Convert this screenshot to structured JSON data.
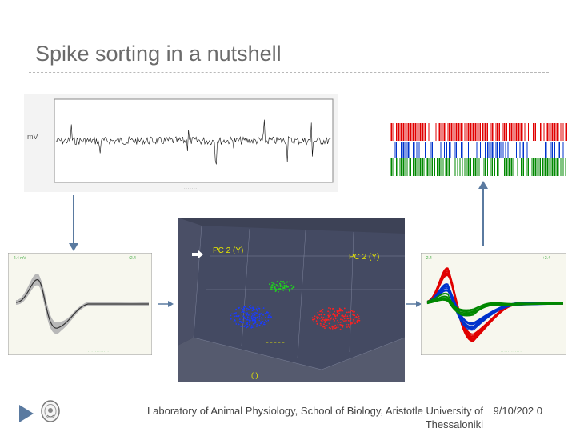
{
  "slide": {
    "title": "Spike sorting in a nutshell"
  },
  "footer": {
    "text": "Laboratory of Animal Physiology, School of Biology, Aristotle University of Thessaloniki",
    "date": "9/10/202 0"
  },
  "figures": {
    "raw_trace": {
      "icon": "raw-voltage-trace",
      "colors": {
        "trace": "#111111",
        "frame": "#888888"
      }
    },
    "raster": {
      "icon": "spike-raster",
      "colors": {
        "unit1": "#e00000",
        "unit2": "#0033cc",
        "unit3": "#008800"
      }
    },
    "waveforms_all": {
      "icon": "overlaid-waveforms",
      "colors": {
        "band": "#b8b8b8",
        "mean": "#333333"
      }
    },
    "pca": {
      "icon": "pca-3d-scatter",
      "axis_labels": [
        "PC 2 (Y)",
        "PC 2 (Y)"
      ],
      "colors": {
        "cluster1": "#e00000",
        "cluster2": "#0033cc",
        "cluster3": "#00aa00",
        "background": "#3b3f56"
      }
    },
    "waveforms_sorted": {
      "icon": "sorted-waveforms",
      "colors": {
        "unit1": "#e00000",
        "unit2": "#0033cc",
        "unit3": "#008800"
      }
    }
  },
  "theme": {
    "accent": "#5a7aa0",
    "title_color": "#6b6b6b"
  }
}
